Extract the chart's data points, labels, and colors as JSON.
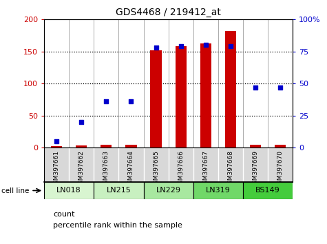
{
  "title": "GDS4468 / 219412_at",
  "samples": [
    "GSM397661",
    "GSM397662",
    "GSM397663",
    "GSM397664",
    "GSM397665",
    "GSM397666",
    "GSM397667",
    "GSM397668",
    "GSM397669",
    "GSM397670"
  ],
  "count_values": [
    2,
    3,
    5,
    5,
    152,
    158,
    163,
    182,
    5,
    5
  ],
  "percentile_values": [
    5,
    20,
    36,
    36,
    78,
    79,
    80,
    79,
    47,
    47
  ],
  "cell_lines": [
    {
      "label": "LN018",
      "start": 0,
      "end": 2,
      "color": "#d8f5d0"
    },
    {
      "label": "LN215",
      "start": 2,
      "end": 4,
      "color": "#c8f0c0"
    },
    {
      "label": "LN229",
      "start": 4,
      "end": 6,
      "color": "#a8e8a0"
    },
    {
      "label": "LN319",
      "start": 6,
      "end": 8,
      "color": "#70d868"
    },
    {
      "label": "BS149",
      "start": 8,
      "end": 10,
      "color": "#44cc3c"
    }
  ],
  "ylim_left": [
    0,
    200
  ],
  "ylim_right": [
    0,
    100
  ],
  "yticks_left": [
    0,
    50,
    100,
    150,
    200
  ],
  "yticks_right": [
    0,
    25,
    50,
    75,
    100
  ],
  "ytick_labels_right": [
    "0",
    "25",
    "50",
    "75",
    "100%"
  ],
  "bar_color": "#cc0000",
  "dot_color": "#0000cc",
  "bar_width": 0.45
}
